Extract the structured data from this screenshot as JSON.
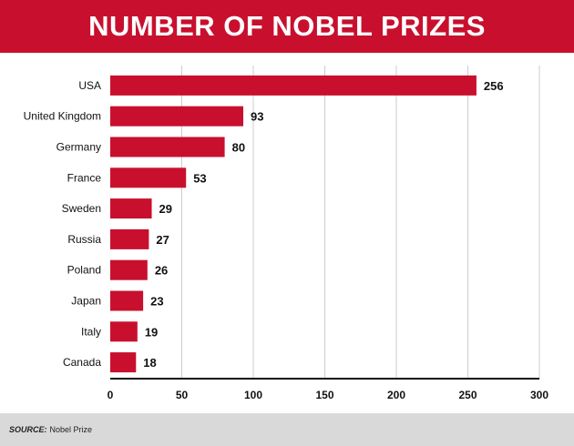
{
  "colors": {
    "title_background": "#c8102e",
    "bar": "#c8102e",
    "gridline": "#cccccc",
    "axis": "#111111",
    "footer_background": "#d9d9d9"
  },
  "chart_data": {
    "type": "bar",
    "orientation": "horizontal",
    "title": "NUMBER OF NOBEL PRIZES",
    "categories": [
      "USA",
      "United Kingdom",
      "Germany",
      "France",
      "Sweden",
      "Russia",
      "Poland",
      "Japan",
      "Italy",
      "Canada"
    ],
    "values": [
      256,
      93,
      80,
      53,
      29,
      27,
      26,
      23,
      19,
      18
    ],
    "xlim": [
      0,
      300
    ],
    "xticks": [
      0,
      50,
      100,
      150,
      200,
      250,
      300
    ],
    "xlabel": "",
    "ylabel": "",
    "grid": "vertical",
    "data_labels": true
  },
  "footer": {
    "source_label": "SOURCE:",
    "source_text": "Nobel Prize"
  }
}
